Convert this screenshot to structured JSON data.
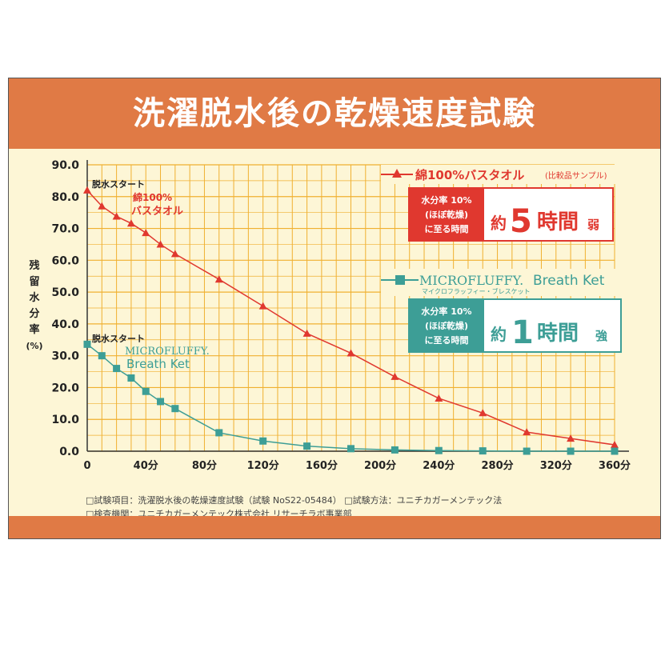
{
  "title": "洗濯脱水後の乾燥速度試験",
  "chart_data": {
    "type": "line",
    "ylabel": [
      "残",
      "留",
      "水",
      "分",
      "率",
      "(%)"
    ],
    "ylim": [
      0,
      90
    ],
    "yticks": [
      "0.0",
      "10.0",
      "20.0",
      "30.0",
      "40.0",
      "50.0",
      "60.0",
      "70.0",
      "80.0",
      "90.0"
    ],
    "xlim": [
      0,
      360
    ],
    "xticks": [
      {
        "v": 0,
        "label": "0"
      },
      {
        "v": 40,
        "label": "40分"
      },
      {
        "v": 80,
        "label": "80分"
      },
      {
        "v": 120,
        "label": "120分"
      },
      {
        "v": 160,
        "label": "160分"
      },
      {
        "v": 200,
        "label": "200分"
      },
      {
        "v": 240,
        "label": "240分"
      },
      {
        "v": 280,
        "label": "280分"
      },
      {
        "v": 320,
        "label": "320分"
      },
      {
        "v": 360,
        "label": "360分"
      }
    ],
    "grid": true,
    "series": [
      {
        "name": "綿100%バスタオル",
        "color": "#e0382f",
        "marker": "triangle",
        "x": [
          0,
          10,
          20,
          30,
          40,
          50,
          60,
          90,
          120,
          150,
          180,
          210,
          240,
          270,
          300,
          330,
          360
        ],
        "y": [
          82.0,
          77.0,
          73.8,
          71.6,
          68.6,
          65.0,
          62.0,
          54.0,
          45.6,
          37.0,
          30.8,
          23.4,
          16.6,
          12.0,
          6.0,
          4.0,
          2.0
        ]
      },
      {
        "name": "MICROFLUFFY. Breath Ket",
        "color": "#3d9e96",
        "marker": "square",
        "x": [
          0,
          10,
          20,
          30,
          40,
          50,
          60,
          90,
          120,
          150,
          180,
          210,
          240,
          270,
          300,
          330,
          360
        ],
        "y": [
          33.6,
          30.0,
          26.0,
          23.0,
          18.8,
          15.6,
          13.4,
          5.8,
          3.2,
          1.6,
          0.8,
          0.4,
          0.2,
          0.1,
          0.0,
          0.0,
          0.0
        ]
      }
    ],
    "annotations": {
      "start1": "脱水スタート",
      "cotton_label": [
        "綿100%",
        "バスタオル"
      ],
      "start2": "脱水スタート",
      "micro_label": [
        "MICROFLUFFY.",
        "Breath Ket"
      ]
    },
    "legend": {
      "cotton_name": "綿100%バスタオル",
      "cotton_sub": "(比較品サンプル)",
      "micro_name": "MICROFLUFFY.",
      "micro_name2": "Breath Ket",
      "micro_kana": "マイクロフラッフィー・ブレスケット",
      "box_label": [
        "水分率 10%",
        "(ほぼ乾燥)",
        "に至る時間"
      ],
      "cotton_yaku": "約",
      "cotton_num": "5",
      "cotton_unit": "時間",
      "cotton_suffix": "弱",
      "micro_yaku": "約",
      "micro_num": "1",
      "micro_unit": "時間",
      "micro_suffix": "強"
    }
  },
  "notes": {
    "line1": "□試験項目：洗濯脱水後の乾燥速度試験（試験 NoS22-05484）  □試験方法：ユニチカガーメンテック法",
    "line2": "□検査機関：ユニチカガーメンテック株式会社 リサーチラボ事業部"
  }
}
